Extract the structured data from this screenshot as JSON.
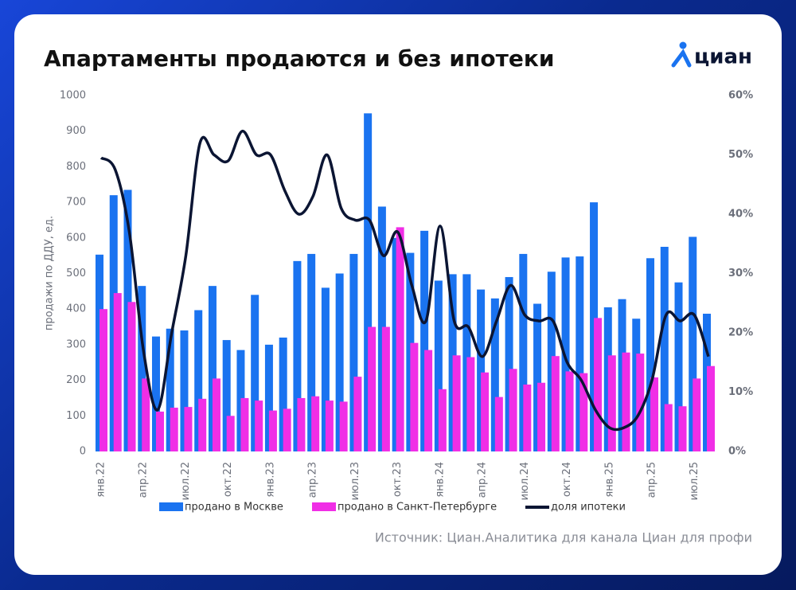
{
  "chart_data": {
    "type": "bar-line",
    "title": "Апартаменты продаются и без ипотеки",
    "logo": "циан",
    "source": "Источник: Циан.Аналитика для канала Циан для профи",
    "y_label": "продажи по ДДУ, ед.",
    "categories": [
      "янв.22",
      null,
      null,
      "апр.22",
      null,
      null,
      "июл.22",
      null,
      null,
      "окт.22",
      null,
      null,
      "янв.23",
      null,
      null,
      "апр.23",
      null,
      null,
      "июл.23",
      null,
      null,
      "окт.23",
      null,
      null,
      "янв.24",
      null,
      null,
      "апр.24",
      null,
      null,
      "июл.24",
      null,
      null,
      "окт.24",
      null,
      null,
      "янв.25",
      null,
      null,
      "апр.25",
      null,
      null,
      "июл.25",
      null
    ],
    "ylim": [
      0,
      1000
    ],
    "yticks": [
      0,
      100,
      200,
      300,
      400,
      500,
      600,
      700,
      800,
      900,
      1000
    ],
    "y2lim": [
      0,
      60
    ],
    "y2ticks": [
      {
        "value": 0,
        "label": "0%"
      },
      {
        "value": 10,
        "label": "10%"
      },
      {
        "value": 20,
        "label": "20%"
      },
      {
        "value": 30,
        "label": "30%"
      },
      {
        "value": 40,
        "label": "40%"
      },
      {
        "value": 50,
        "label": "50%"
      },
      {
        "value": 60,
        "label": "60%"
      }
    ],
    "series": [
      {
        "name": "продано в Москве",
        "color": "#1a73f0",
        "kind": "bar",
        "values": [
          553,
          720,
          735,
          465,
          323,
          345,
          340,
          397,
          465,
          313,
          285,
          440,
          300,
          320,
          535,
          555,
          460,
          500,
          555,
          950,
          688,
          600,
          558,
          620,
          480,
          498,
          498,
          455,
          430,
          490,
          555,
          415,
          505,
          545,
          548,
          700,
          405,
          428,
          373,
          543,
          575,
          475,
          603,
          387
        ]
      },
      {
        "name": "продано в Санкт-Петербурге",
        "color": "#f02ee6",
        "kind": "bar",
        "values": [
          400,
          445,
          420,
          205,
          112,
          123,
          125,
          148,
          205,
          100,
          150,
          143,
          115,
          120,
          150,
          155,
          143,
          140,
          210,
          350,
          350,
          630,
          305,
          285,
          175,
          270,
          265,
          222,
          153,
          232,
          188,
          193,
          268,
          225,
          220,
          375,
          270,
          278,
          275,
          208,
          133,
          127,
          205,
          240
        ]
      },
      {
        "name": "доля ипотеки",
        "color": "#0b1533",
        "kind": "line",
        "axis": "y2",
        "values": [
          49.5,
          47.5,
          37,
          17,
          7,
          20,
          33,
          52,
          50,
          49,
          54,
          50,
          50,
          44,
          40,
          43,
          50,
          41,
          39,
          39,
          33,
          37,
          28,
          22,
          38,
          22,
          21,
          16,
          22,
          28,
          23,
          22,
          22,
          15,
          12,
          7,
          4,
          4,
          6,
          12,
          23,
          22,
          23,
          16
        ]
      }
    ]
  }
}
